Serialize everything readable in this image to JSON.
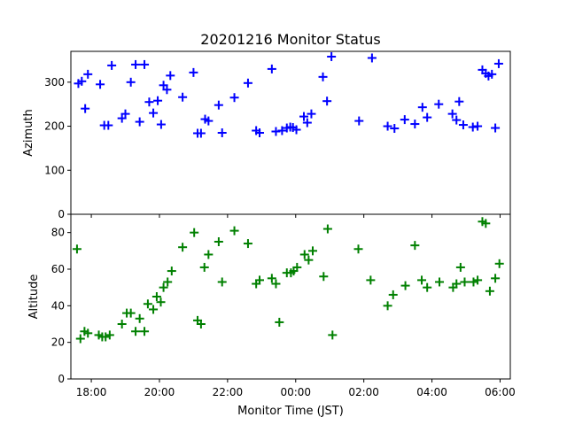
{
  "chart_data": [
    {
      "type": "scatter",
      "title": "20201216 Monitor Status",
      "ylabel": "Azimuth",
      "xlabel": "",
      "xlim": [
        -0.6,
        12.3
      ],
      "ylim": [
        0,
        370
      ],
      "yticks": [
        0,
        100,
        200,
        300
      ],
      "xtick_labels": [
        "18:00",
        "20:00",
        "22:00",
        "00:00",
        "02:00",
        "04:00",
        "06:00"
      ],
      "color": "#0000ff",
      "marker": "plus",
      "points": [
        [
          -0.38,
          297
        ],
        [
          -0.28,
          302
        ],
        [
          -0.18,
          240
        ],
        [
          -0.1,
          318
        ],
        [
          0.26,
          295
        ],
        [
          0.38,
          202
        ],
        [
          0.5,
          202
        ],
        [
          0.6,
          338
        ],
        [
          0.9,
          218
        ],
        [
          1.0,
          228
        ],
        [
          1.16,
          300
        ],
        [
          1.3,
          340
        ],
        [
          1.42,
          210
        ],
        [
          1.56,
          340
        ],
        [
          1.7,
          255
        ],
        [
          1.82,
          230
        ],
        [
          1.95,
          258
        ],
        [
          2.05,
          204
        ],
        [
          2.12,
          293
        ],
        [
          2.22,
          283
        ],
        [
          2.32,
          315
        ],
        [
          2.68,
          266
        ],
        [
          3.0,
          322
        ],
        [
          3.12,
          184
        ],
        [
          3.22,
          184
        ],
        [
          3.34,
          216
        ],
        [
          3.44,
          212
        ],
        [
          3.74,
          248
        ],
        [
          3.84,
          185
        ],
        [
          4.2,
          265
        ],
        [
          4.6,
          298
        ],
        [
          4.84,
          190
        ],
        [
          4.94,
          185
        ],
        [
          5.3,
          330
        ],
        [
          5.42,
          188
        ],
        [
          5.6,
          190
        ],
        [
          5.74,
          196
        ],
        [
          5.84,
          198
        ],
        [
          5.92,
          197
        ],
        [
          6.02,
          192
        ],
        [
          6.24,
          222
        ],
        [
          6.34,
          208
        ],
        [
          6.46,
          228
        ],
        [
          6.8,
          312
        ],
        [
          6.92,
          257
        ],
        [
          7.05,
          358
        ],
        [
          7.86,
          212
        ],
        [
          8.24,
          355
        ],
        [
          8.7,
          200
        ],
        [
          8.9,
          195
        ],
        [
          9.2,
          215
        ],
        [
          9.5,
          205
        ],
        [
          9.72,
          243
        ],
        [
          9.86,
          220
        ],
        [
          10.2,
          250
        ],
        [
          10.6,
          228
        ],
        [
          10.72,
          214
        ],
        [
          10.8,
          256
        ],
        [
          10.92,
          203
        ],
        [
          11.2,
          198
        ],
        [
          11.34,
          200
        ],
        [
          11.48,
          328
        ],
        [
          11.58,
          320
        ],
        [
          11.66,
          314
        ],
        [
          11.76,
          318
        ],
        [
          11.86,
          196
        ],
        [
          11.96,
          342
        ]
      ]
    },
    {
      "type": "scatter",
      "title": "",
      "ylabel": "Altitude",
      "xlabel": "Monitor Time (JST)",
      "xlim": [
        -0.6,
        12.3
      ],
      "ylim": [
        0,
        90
      ],
      "yticks": [
        0,
        20,
        40,
        60,
        80
      ],
      "xtick_labels": [
        "18:00",
        "20:00",
        "22:00",
        "00:00",
        "02:00",
        "04:00",
        "06:00"
      ],
      "color": "#008000",
      "marker": "plus",
      "points": [
        [
          -0.42,
          71
        ],
        [
          -0.32,
          22
        ],
        [
          -0.2,
          26
        ],
        [
          -0.1,
          25
        ],
        [
          0.22,
          24
        ],
        [
          0.32,
          23
        ],
        [
          0.42,
          23
        ],
        [
          0.54,
          24
        ],
        [
          0.9,
          30
        ],
        [
          1.04,
          36
        ],
        [
          1.16,
          36
        ],
        [
          1.3,
          26
        ],
        [
          1.42,
          33
        ],
        [
          1.56,
          26
        ],
        [
          1.66,
          41
        ],
        [
          1.82,
          38
        ],
        [
          1.92,
          45
        ],
        [
          2.04,
          42
        ],
        [
          2.12,
          50
        ],
        [
          2.24,
          53
        ],
        [
          2.36,
          59
        ],
        [
          2.68,
          72
        ],
        [
          3.02,
          80
        ],
        [
          3.12,
          32
        ],
        [
          3.22,
          30
        ],
        [
          3.32,
          61
        ],
        [
          3.44,
          68
        ],
        [
          3.74,
          75
        ],
        [
          3.84,
          53
        ],
        [
          4.2,
          81
        ],
        [
          4.6,
          74
        ],
        [
          4.84,
          52
        ],
        [
          4.94,
          54
        ],
        [
          5.3,
          55
        ],
        [
          5.42,
          52
        ],
        [
          5.52,
          31
        ],
        [
          5.74,
          58
        ],
        [
          5.86,
          58
        ],
        [
          5.94,
          59
        ],
        [
          6.04,
          61
        ],
        [
          6.26,
          68
        ],
        [
          6.38,
          65
        ],
        [
          6.5,
          70
        ],
        [
          6.82,
          56
        ],
        [
          6.94,
          82
        ],
        [
          7.08,
          24
        ],
        [
          7.84,
          71
        ],
        [
          8.2,
          54
        ],
        [
          8.7,
          40
        ],
        [
          8.86,
          46
        ],
        [
          9.22,
          51
        ],
        [
          9.5,
          73
        ],
        [
          9.7,
          54
        ],
        [
          9.86,
          50
        ],
        [
          10.22,
          53
        ],
        [
          10.62,
          50
        ],
        [
          10.72,
          52
        ],
        [
          10.84,
          61
        ],
        [
          10.96,
          53
        ],
        [
          11.22,
          53
        ],
        [
          11.34,
          54
        ],
        [
          11.48,
          86
        ],
        [
          11.58,
          85
        ],
        [
          11.7,
          48
        ],
        [
          11.86,
          55
        ],
        [
          11.98,
          63
        ]
      ]
    }
  ]
}
